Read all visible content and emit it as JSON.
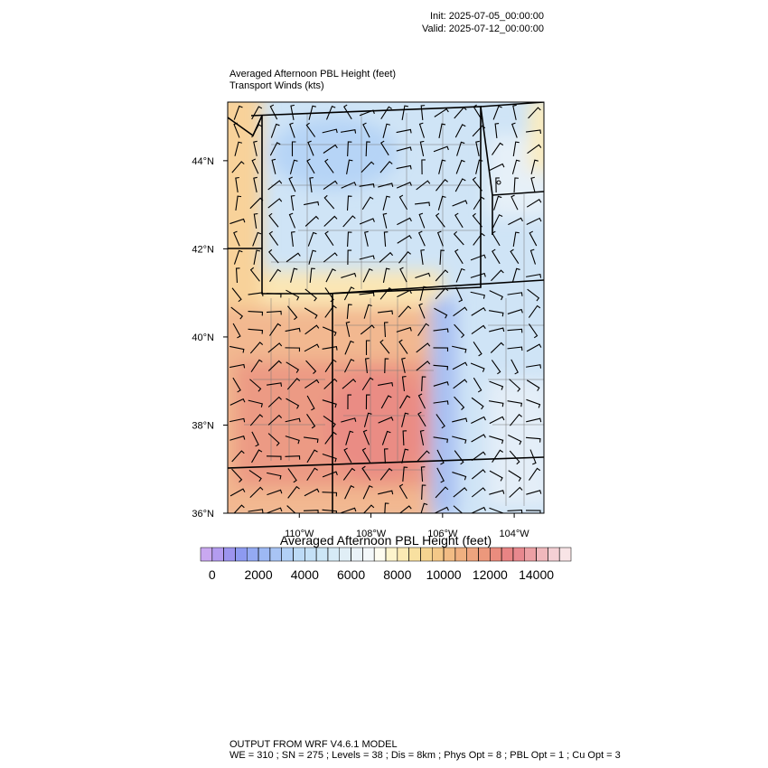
{
  "header": {
    "init": "Init: 2025-07-05_00:00:00",
    "valid": "Valid: 2025-07-12_00:00:00"
  },
  "map": {
    "title": "Averaged Afternoon PBL Height   (feet)",
    "subtitle": "Transport Winds   (kts)",
    "ylim": [
      36,
      45.33
    ],
    "xlim": [
      112.0,
      103.17
    ],
    "yticks": [
      {
        "value": 44,
        "label": "44°N"
      },
      {
        "value": 42,
        "label": "42°N"
      },
      {
        "value": 40,
        "label": "40°N"
      },
      {
        "value": 38,
        "label": "38°N"
      },
      {
        "value": 36,
        "label": "36°N"
      }
    ],
    "xticks": [
      {
        "value": 110,
        "label": "110°W"
      },
      {
        "value": 108,
        "label": "108°W"
      },
      {
        "value": 106,
        "label": "106°W"
      },
      {
        "value": 104,
        "label": "104°W"
      }
    ]
  },
  "colorbar": {
    "title": "Averaged Afternoon PBL Height  (feet)",
    "levels": [
      0,
      500,
      1000,
      1500,
      2000,
      2500,
      3000,
      3500,
      4000,
      4500,
      5000,
      5500,
      6000,
      6500,
      7000,
      7500,
      8000,
      8500,
      9000,
      9500,
      10000,
      10500,
      11000,
      11500,
      12000,
      12500,
      13000,
      13500,
      14000,
      14500,
      15000
    ],
    "colors": [
      "#c9a8f0",
      "#b49cf0",
      "#9c94ee",
      "#8d9af0",
      "#94aaf2",
      "#9db8f4",
      "#a8c4f4",
      "#b2d0f6",
      "#bcdaf6",
      "#c4e0f6",
      "#cce6f6",
      "#d6eaf6",
      "#e0eef6",
      "#eaf2f8",
      "#f4f8fa",
      "#fefcf0",
      "#fdf4cc",
      "#fbeab4",
      "#f8e0a0",
      "#f6d490",
      "#f4c888",
      "#f2bc84",
      "#f0b080",
      "#eea47e",
      "#ec987c",
      "#ea8c7e",
      "#e88484",
      "#e8888e",
      "#eca0a4",
      "#f0b8bc",
      "#f4d0d4",
      "#f8e4e6"
    ],
    "ticks": [
      0,
      2000,
      4000,
      6000,
      8000,
      10000,
      12000,
      14000
    ]
  },
  "footer": {
    "line1": "OUTPUT FROM WRF V4.6.1 MODEL",
    "line2": "WE = 310 ; SN = 275 ; Levels = 38 ; Dis = 8km ; Phys Opt = 8 ; PBL Opt = 1 ; Cu Opt = 3"
  }
}
